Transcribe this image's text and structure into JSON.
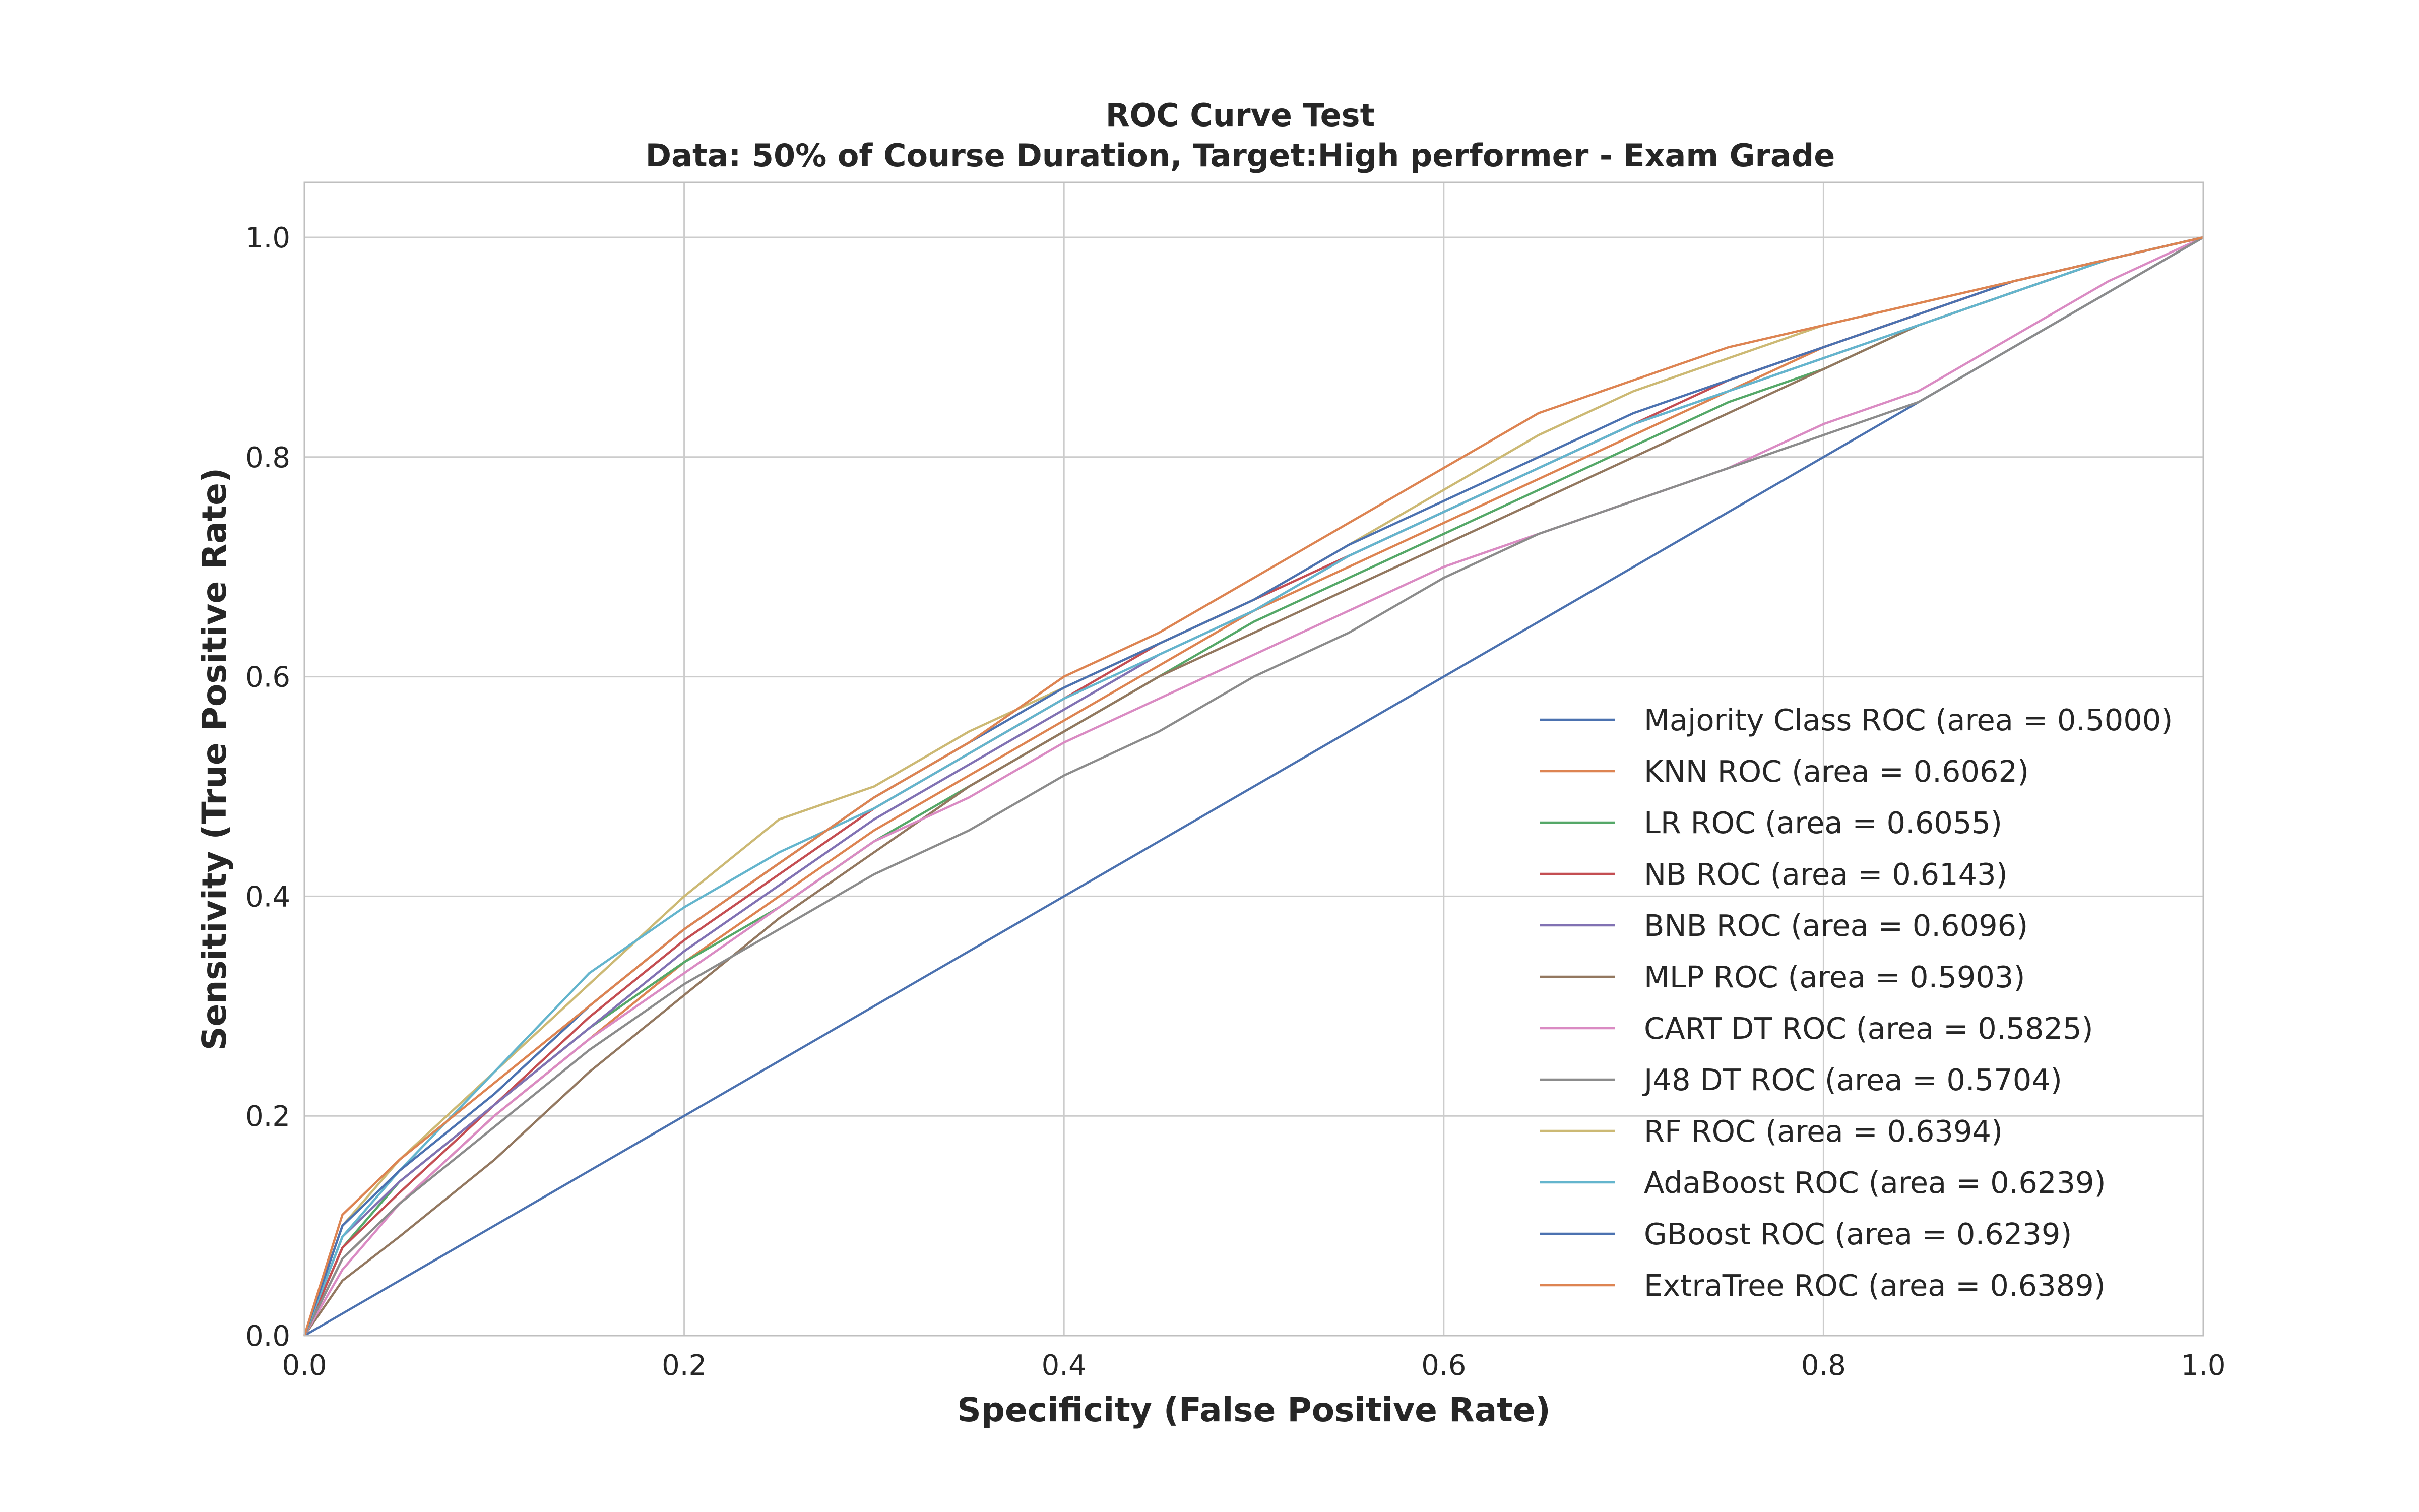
{
  "chart_data": {
    "type": "line",
    "title_line1": "ROC Curve Test",
    "title_line2": "Data: 50% of Course Duration, Target:High performer - Exam Grade",
    "xlabel": "Specificity (False Positive Rate)",
    "ylabel": "Sensitivity (True Positive Rate)",
    "xlim": [
      0.0,
      1.0
    ],
    "ylim": [
      0.0,
      1.05
    ],
    "xticks": [
      "0.0",
      "0.2",
      "0.4",
      "0.6",
      "0.8",
      "1.0"
    ],
    "yticks": [
      "0.0",
      "0.2",
      "0.4",
      "0.6",
      "0.8",
      "1.0"
    ],
    "grid": true,
    "legend_position": "lower right",
    "series": [
      {
        "name": "Majority Class ROC (area = 0.5000)",
        "color": "#4c72b0",
        "x": [
          0,
          1
        ],
        "y": [
          0,
          1
        ]
      },
      {
        "name": "KNN ROC (area = 0.6062)",
        "color": "#dd8452",
        "x": [
          0,
          0.02,
          0.05,
          0.1,
          0.15,
          0.2,
          0.25,
          0.3,
          0.35,
          0.4,
          0.45,
          0.5,
          0.55,
          0.6,
          0.65,
          0.7,
          0.75,
          0.8,
          0.85,
          0.9,
          0.95,
          1.0
        ],
        "y": [
          0,
          0.07,
          0.12,
          0.2,
          0.27,
          0.34,
          0.4,
          0.46,
          0.51,
          0.56,
          0.61,
          0.66,
          0.7,
          0.74,
          0.78,
          0.82,
          0.86,
          0.9,
          0.93,
          0.96,
          0.98,
          1.0
        ]
      },
      {
        "name": "LR ROC (area = 0.6055)",
        "color": "#55a868",
        "x": [
          0,
          0.02,
          0.05,
          0.1,
          0.15,
          0.2,
          0.25,
          0.3,
          0.35,
          0.4,
          0.45,
          0.5,
          0.55,
          0.6,
          0.65,
          0.7,
          0.75,
          0.8,
          0.85,
          0.9,
          0.95,
          1.0
        ],
        "y": [
          0,
          0.08,
          0.14,
          0.21,
          0.28,
          0.34,
          0.39,
          0.45,
          0.5,
          0.55,
          0.6,
          0.65,
          0.69,
          0.73,
          0.77,
          0.81,
          0.85,
          0.88,
          0.92,
          0.95,
          0.98,
          1.0
        ]
      },
      {
        "name": "NB ROC (area = 0.6143)",
        "color": "#c44e52",
        "x": [
          0,
          0.02,
          0.05,
          0.1,
          0.15,
          0.2,
          0.25,
          0.3,
          0.35,
          0.4,
          0.45,
          0.5,
          0.55,
          0.6,
          0.65,
          0.7,
          0.75,
          0.8,
          0.85,
          0.9,
          0.95,
          1.0
        ],
        "y": [
          0,
          0.08,
          0.13,
          0.21,
          0.29,
          0.36,
          0.42,
          0.48,
          0.53,
          0.58,
          0.63,
          0.67,
          0.71,
          0.75,
          0.79,
          0.83,
          0.87,
          0.9,
          0.93,
          0.96,
          0.98,
          1.0
        ]
      },
      {
        "name": "BNB ROC (area = 0.6096)",
        "color": "#8172b3",
        "x": [
          0,
          0.02,
          0.05,
          0.1,
          0.15,
          0.2,
          0.25,
          0.3,
          0.35,
          0.4,
          0.45,
          0.5,
          0.55,
          0.6,
          0.65,
          0.7,
          0.75,
          0.8,
          0.85,
          0.9,
          0.95,
          1.0
        ],
        "y": [
          0,
          0.09,
          0.14,
          0.21,
          0.28,
          0.35,
          0.41,
          0.47,
          0.52,
          0.57,
          0.62,
          0.66,
          0.71,
          0.75,
          0.79,
          0.83,
          0.86,
          0.89,
          0.92,
          0.95,
          0.98,
          1.0
        ]
      },
      {
        "name": "MLP ROC (area = 0.5903)",
        "color": "#937860",
        "x": [
          0,
          0.02,
          0.05,
          0.1,
          0.15,
          0.2,
          0.25,
          0.3,
          0.35,
          0.4,
          0.45,
          0.5,
          0.55,
          0.6,
          0.65,
          0.7,
          0.75,
          0.8,
          0.85,
          0.9,
          0.95,
          1.0
        ],
        "y": [
          0,
          0.05,
          0.09,
          0.16,
          0.24,
          0.31,
          0.38,
          0.44,
          0.5,
          0.55,
          0.6,
          0.64,
          0.68,
          0.72,
          0.76,
          0.8,
          0.84,
          0.88,
          0.92,
          0.95,
          0.98,
          1.0
        ]
      },
      {
        "name": "CART DT ROC (area = 0.5825)",
        "color": "#da8bc3",
        "x": [
          0,
          0.02,
          0.05,
          0.1,
          0.15,
          0.2,
          0.25,
          0.3,
          0.35,
          0.4,
          0.45,
          0.5,
          0.55,
          0.6,
          0.65,
          0.7,
          0.75,
          0.8,
          0.85,
          0.9,
          0.95,
          1.0
        ],
        "y": [
          0,
          0.06,
          0.12,
          0.2,
          0.27,
          0.33,
          0.39,
          0.45,
          0.49,
          0.54,
          0.58,
          0.62,
          0.66,
          0.7,
          0.73,
          0.76,
          0.79,
          0.83,
          0.86,
          0.91,
          0.96,
          1.0
        ]
      },
      {
        "name": "J48 DT ROC (area = 0.5704)",
        "color": "#8c8c8c",
        "x": [
          0,
          0.02,
          0.05,
          0.1,
          0.15,
          0.2,
          0.25,
          0.3,
          0.35,
          0.4,
          0.45,
          0.5,
          0.55,
          0.6,
          0.65,
          0.7,
          0.75,
          0.8,
          0.85,
          0.9,
          0.95,
          1.0
        ],
        "y": [
          0,
          0.07,
          0.12,
          0.19,
          0.26,
          0.32,
          0.37,
          0.42,
          0.46,
          0.51,
          0.55,
          0.6,
          0.64,
          0.69,
          0.73,
          0.76,
          0.79,
          0.82,
          0.85,
          0.9,
          0.95,
          1.0
        ]
      },
      {
        "name": "RF ROC (area = 0.6394)",
        "color": "#ccb974",
        "x": [
          0,
          0.02,
          0.05,
          0.1,
          0.15,
          0.2,
          0.25,
          0.3,
          0.35,
          0.4,
          0.45,
          0.5,
          0.55,
          0.6,
          0.65,
          0.7,
          0.75,
          0.8,
          0.85,
          0.9,
          0.95,
          1.0
        ],
        "y": [
          0,
          0.1,
          0.16,
          0.24,
          0.32,
          0.4,
          0.47,
          0.5,
          0.55,
          0.59,
          0.63,
          0.67,
          0.72,
          0.77,
          0.82,
          0.86,
          0.89,
          0.92,
          0.94,
          0.96,
          0.98,
          1.0
        ]
      },
      {
        "name": "AdaBoost ROC (area = 0.6239)",
        "color": "#64b5cd",
        "x": [
          0,
          0.02,
          0.05,
          0.1,
          0.15,
          0.2,
          0.25,
          0.3,
          0.35,
          0.4,
          0.45,
          0.5,
          0.55,
          0.6,
          0.65,
          0.7,
          0.75,
          0.8,
          0.85,
          0.9,
          0.95,
          1.0
        ],
        "y": [
          0,
          0.09,
          0.15,
          0.24,
          0.33,
          0.39,
          0.44,
          0.48,
          0.53,
          0.58,
          0.62,
          0.66,
          0.71,
          0.75,
          0.79,
          0.83,
          0.86,
          0.89,
          0.92,
          0.95,
          0.98,
          1.0
        ]
      },
      {
        "name": "GBoost ROC (area = 0.6239)",
        "color": "#4c72b0",
        "x": [
          0,
          0.02,
          0.05,
          0.1,
          0.15,
          0.2,
          0.25,
          0.3,
          0.35,
          0.4,
          0.45,
          0.5,
          0.55,
          0.6,
          0.65,
          0.7,
          0.75,
          0.8,
          0.85,
          0.9,
          0.95,
          1.0
        ],
        "y": [
          0,
          0.1,
          0.15,
          0.22,
          0.3,
          0.37,
          0.43,
          0.49,
          0.54,
          0.59,
          0.63,
          0.67,
          0.72,
          0.76,
          0.8,
          0.84,
          0.87,
          0.9,
          0.93,
          0.96,
          0.98,
          1.0
        ]
      },
      {
        "name": "ExtraTree ROC (area = 0.6389)",
        "color": "#dd8452",
        "x": [
          0,
          0.02,
          0.05,
          0.1,
          0.15,
          0.2,
          0.25,
          0.3,
          0.35,
          0.4,
          0.45,
          0.5,
          0.55,
          0.6,
          0.65,
          0.7,
          0.75,
          0.8,
          0.85,
          0.9,
          0.95,
          1.0
        ],
        "y": [
          0,
          0.11,
          0.16,
          0.23,
          0.3,
          0.37,
          0.43,
          0.49,
          0.54,
          0.6,
          0.64,
          0.69,
          0.74,
          0.79,
          0.84,
          0.87,
          0.9,
          0.92,
          0.94,
          0.96,
          0.98,
          1.0
        ]
      }
    ]
  }
}
